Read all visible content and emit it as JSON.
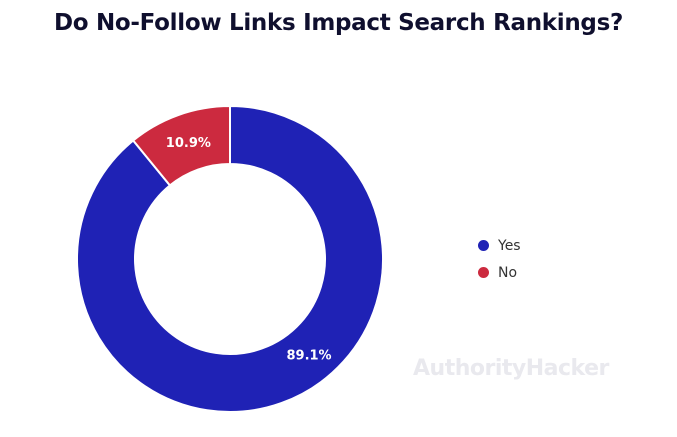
{
  "chart_data": {
    "type": "pie",
    "variant": "donut",
    "title": "Do No-Follow Links Impact Search Rankings?",
    "categories": [
      "Yes",
      "No"
    ],
    "values": [
      89.1,
      10.9
    ],
    "value_labels": [
      "89.1%",
      "10.9%"
    ],
    "colors": [
      "#1f22b5",
      "#cc2a3f"
    ],
    "legend_position": "right"
  },
  "watermark": "AuthorityHacker"
}
